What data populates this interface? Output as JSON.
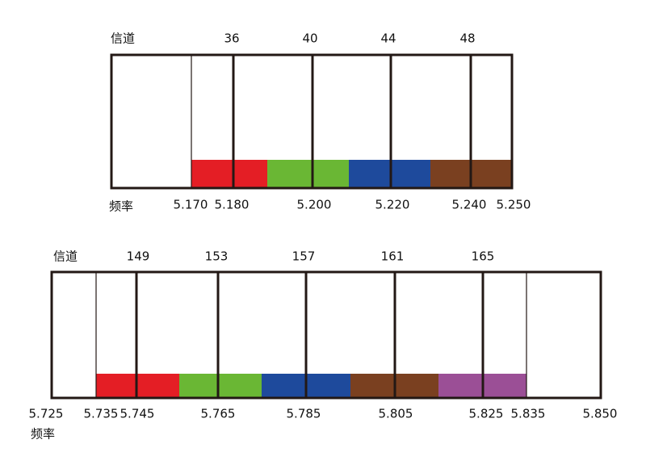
{
  "diagrams": [
    {
      "channel_label": "信道",
      "frequency_label": "频率",
      "channels": [
        "36",
        "40",
        "44",
        "48"
      ],
      "frequencies": [
        "5.170",
        "5.180",
        "5.200",
        "5.220",
        "5.240",
        "5.250"
      ]
    },
    {
      "channel_label": "信道",
      "frequency_label": "频率",
      "channels": [
        "149",
        "153",
        "157",
        "161",
        "165"
      ],
      "frequencies": [
        "5.725",
        "5.735",
        "5.745",
        "5.765",
        "5.785",
        "5.805",
        "5.825",
        "5.835",
        "5.850"
      ]
    }
  ]
}
